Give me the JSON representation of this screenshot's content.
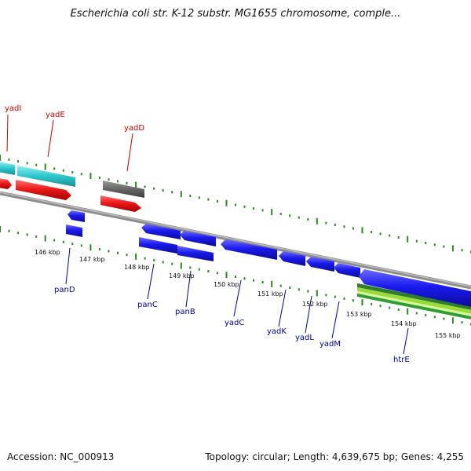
{
  "title": "Escherichia coli str. K-12 substr. MG1655 chromosome, comple...",
  "footer": {
    "accession": "Accession: NC_000913",
    "summary": "Topology: circular; Length: 4,639,675 bp; Genes: 4,255"
  },
  "colors": {
    "axis_tick": "#2a8a1e",
    "backbone": "#8c8c8c",
    "gene_blue": "#1a1aee",
    "gene_red": "#ee1a1a",
    "gene_teal": "#2cc6cc",
    "gene_gray": "#666666",
    "gc_green": "#9adb3a",
    "label_red": "#cc0000",
    "label_blue": "#000099"
  },
  "scale_labels": [
    "146 kbp",
    "147 kbp",
    "148 kbp",
    "149 kbp",
    "150 kbp",
    "151 kbp",
    "152 kbp",
    "153 kbp",
    "154 kbp",
    "155 kbp"
  ],
  "gene_labels_top": [
    "yadI",
    "yadE",
    "yadD"
  ],
  "gene_labels_bottom": [
    "panD",
    "panC",
    "panB",
    "yadC",
    "yadK",
    "yadL",
    "yadM",
    "htrE"
  ]
}
